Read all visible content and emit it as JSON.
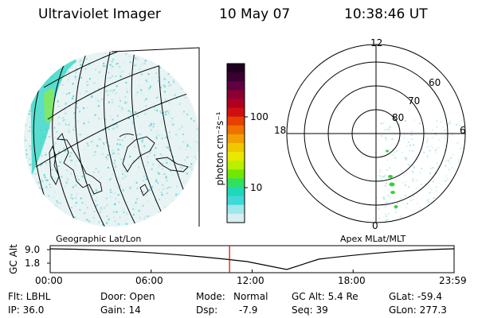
{
  "header": {
    "instrument": "Ultraviolet Imager",
    "date": "10 May 07",
    "time": "10:38:46 UT"
  },
  "colorbar": {
    "unit_label": "photon cm⁻²s⁻¹",
    "ticks": [
      "100",
      "10"
    ],
    "colors": [
      "#200020",
      "#3a0030",
      "#600040",
      "#8a0030",
      "#b00020",
      "#d01010",
      "#e84000",
      "#f07000",
      "#f0a000",
      "#f0c800",
      "#e8e800",
      "#b8f000",
      "#70e800",
      "#30e060",
      "#20d8b8",
      "#40d8d8",
      "#9ee8ea",
      "#d8eef0"
    ]
  },
  "left_panel": {
    "caption": "Geographic Lat/Lon"
  },
  "right_panel": {
    "caption": "Apex MLat/MLT",
    "mlt_labels": [
      "12",
      "18",
      "6",
      "0"
    ],
    "lat_labels": [
      "60",
      "70",
      "80"
    ]
  },
  "timeline": {
    "ylabel": "GC Alt",
    "y_ticks": [
      "9.0",
      "1.8"
    ],
    "x_ticks": [
      "00:00",
      "06:00",
      "12:00",
      "18:00",
      "23:59"
    ],
    "current_time_hours": 10.646,
    "marker_color": "#e00000"
  },
  "footer": {
    "flt": "Flt: LBHL",
    "ip": "IP: 36.0",
    "door": "Door: Open",
    "gain": "Gain: 14",
    "mode_label": "Mode:",
    "mode_value": "Normal",
    "dsp_label": "Dsp:",
    "dsp_value": "-7.9",
    "gcalt": "GC Alt: 5.4 Re",
    "seq": "Seq: 39",
    "glat": "GLat: -59.4",
    "glon": "GLon: 277.3"
  }
}
